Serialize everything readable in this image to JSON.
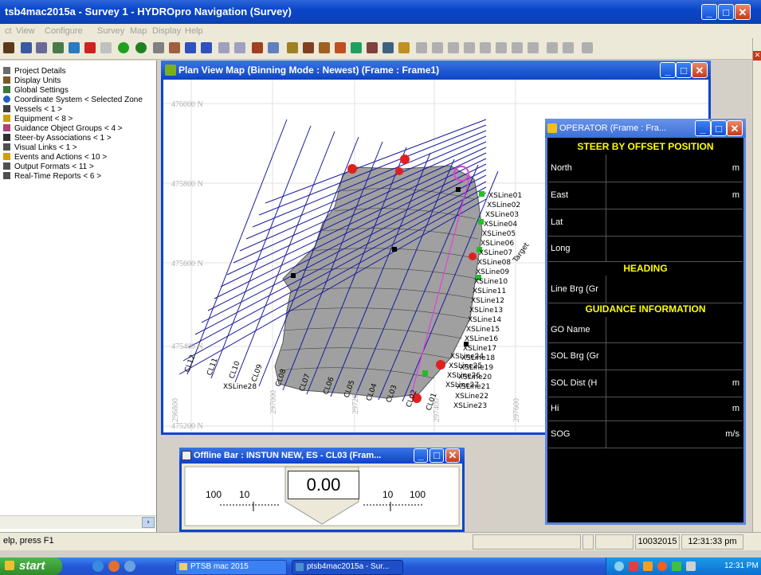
{
  "window": {
    "title": "tsb4mac2015a - Survey 1 - HYDROpro Navigation (Survey)"
  },
  "menu": [
    "ct",
    "View",
    "Configure",
    "Survey",
    "Map",
    "Display",
    "Help"
  ],
  "tree": {
    "items": [
      {
        "label": "Project Details",
        "icon": "document-icon",
        "color": "#6b6b6b"
      },
      {
        "label": "Display Units",
        "icon": "units-icon",
        "color": "#7a5a2a"
      },
      {
        "label": "Global Settings",
        "icon": "settings-icon",
        "color": "#3a7a3a"
      },
      {
        "label": "Coordinate System < Selected Zone",
        "icon": "globe-icon",
        "color": "#2060c0"
      },
      {
        "label": "Vessels < 1 >",
        "icon": "vessel-icon",
        "color": "#404040"
      },
      {
        "label": "Equipment < 8 >",
        "icon": "equipment-icon",
        "color": "#c8a000"
      },
      {
        "label": "Guidance Object Groups < 4 >",
        "icon": "guidance-icon",
        "color": "#b04080"
      },
      {
        "label": "Steer-by Associations < 1 >",
        "icon": "steer-icon",
        "color": "#303030"
      },
      {
        "label": "Visual Links < 1 >",
        "icon": "link-icon",
        "color": "#505050"
      },
      {
        "label": "Events and Actions < 10 >",
        "icon": "event-icon",
        "color": "#d0a000"
      },
      {
        "label": "Output Formats < 11 >",
        "icon": "output-icon",
        "color": "#505050"
      },
      {
        "label": "Real-Time Reports < 6 >",
        "icon": "report-icon",
        "color": "#505050"
      }
    ]
  },
  "plan": {
    "title": "Plan View Map (Binning Mode : Newest)  (Frame : Frame1)",
    "north_labels": [
      "476000 N",
      "475800 N",
      "475600 N",
      "475400 N",
      "475200 N"
    ],
    "east_labels": [
      "296800",
      "297000",
      "297200",
      "297400",
      "297600"
    ],
    "line_labels": [
      "XSLine01",
      "XSLine02",
      "XSLine03",
      "XSLine04",
      "XSLine05",
      "XSLine06",
      "XSLine07",
      "XSLine08",
      "XSLine09",
      "XSLine10",
      "XSLine11",
      "XSLine12",
      "XSLine13",
      "XSLine14",
      "XSLine15",
      "XSLine16",
      "XSLine17",
      "XSLine18",
      "XSLine19",
      "XSLine20",
      "XSLine21",
      "XSLine22",
      "XSLine23",
      "XSLine24",
      "XSLine25",
      "XSLine26",
      "XSLine27",
      "XSLine28"
    ],
    "cl_labels": [
      "CL12",
      "CL11",
      "CL10",
      "CL09",
      "CL08",
      "CL07",
      "CL06",
      "CL05",
      "CL04",
      "CL03",
      "CL02",
      "CL01"
    ],
    "target_label": "Target"
  },
  "operator": {
    "title": "OPERATOR (Frame : Fra...",
    "sections": {
      "steer": "STEER BY OFFSET POSITION",
      "heading": "HEADING",
      "guidance": "GUIDANCE INFORMATION"
    },
    "rows": [
      {
        "label": "North",
        "unit": "m"
      },
      {
        "label": "East",
        "unit": "m"
      },
      {
        "label": "Lat",
        "unit": ""
      },
      {
        "label": "Long",
        "unit": ""
      },
      {
        "label": "Line Brg (Gr",
        "unit": ""
      },
      {
        "label": "GO Name",
        "unit": ""
      },
      {
        "label": "SOL Brg (Gr",
        "unit": ""
      },
      {
        "label": "SOL Dist (H",
        "unit": "m"
      },
      {
        "label": "Hi",
        "unit": "m"
      },
      {
        "label": "SOG",
        "unit": "m/s"
      }
    ]
  },
  "offline": {
    "title": "Offline Bar : INSTUN NEW, ES - CL03 (Fram...",
    "value": "0.00",
    "scale_left": [
      "100",
      "10"
    ],
    "scale_right": [
      "10",
      "100"
    ]
  },
  "status": {
    "help": "elp, press F1",
    "date": "10032015",
    "time": "12:31:33 pm"
  },
  "taskbar": {
    "start": "start",
    "tasks": [
      "PTSB mac 2015",
      "ptsb4mac2015a - Sur..."
    ],
    "clock": "12:31 PM"
  },
  "colors": {
    "accent": "#0a46c9",
    "operator_header": "#ffff00",
    "map_bg": "#a0a0a0",
    "grid_line": "#1a1aa0"
  }
}
